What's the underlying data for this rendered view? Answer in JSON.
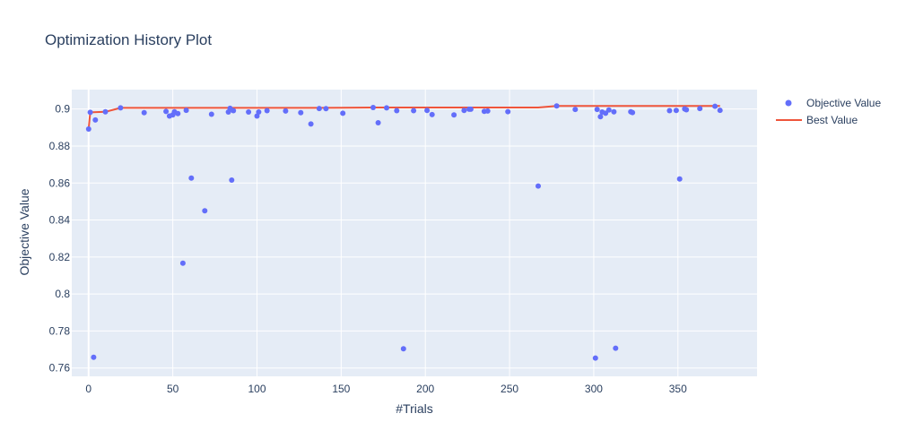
{
  "chart_data": {
    "type": "scatter",
    "title": "Optimization History Plot",
    "xlabel": "#Trials",
    "ylabel": "Objective Value",
    "xlim": [
      -10,
      397
    ],
    "ylim": [
      0.7555,
      0.9105
    ],
    "xticks": [
      0,
      50,
      100,
      150,
      200,
      250,
      300,
      350
    ],
    "yticks": [
      0.76,
      0.78,
      0.8,
      0.82,
      0.84,
      0.86,
      0.88,
      0.9
    ],
    "ytick_labels": [
      "0.76",
      "0.78",
      "0.8",
      "0.82",
      "0.84",
      "0.86",
      "0.88",
      "0.9"
    ],
    "grid": true,
    "legend_position": "top-right",
    "colors": {
      "objective": "#636efa",
      "best": "#ef553b",
      "plot_bg": "#e5ecf6",
      "text": "#2a3f5f"
    },
    "series": [
      {
        "name": "Objective Value",
        "mode": "markers",
        "points": [
          [
            0,
            0.8892
          ],
          [
            1,
            0.8982
          ],
          [
            3,
            0.7658
          ],
          [
            4,
            0.8941
          ],
          [
            10,
            0.8985
          ],
          [
            19,
            0.9006
          ],
          [
            33,
            0.898
          ],
          [
            46,
            0.8987
          ],
          [
            48,
            0.8962
          ],
          [
            50,
            0.8968
          ],
          [
            51,
            0.8985
          ],
          [
            53,
            0.8975
          ],
          [
            56,
            0.8167
          ],
          [
            58,
            0.8993
          ],
          [
            61,
            0.8627
          ],
          [
            69,
            0.845
          ],
          [
            73,
            0.8972
          ],
          [
            83,
            0.8984
          ],
          [
            84,
            0.9004
          ],
          [
            85,
            0.8616
          ],
          [
            86,
            0.8991
          ],
          [
            95,
            0.8984
          ],
          [
            100,
            0.8962
          ],
          [
            101,
            0.8984
          ],
          [
            106,
            0.8991
          ],
          [
            117,
            0.8989
          ],
          [
            126,
            0.898
          ],
          [
            132,
            0.8919
          ],
          [
            137,
            0.9003
          ],
          [
            141,
            0.9002
          ],
          [
            151,
            0.8977
          ],
          [
            169,
            0.9008
          ],
          [
            172,
            0.8926
          ],
          [
            177,
            0.9006
          ],
          [
            183,
            0.8991
          ],
          [
            187,
            0.7704
          ],
          [
            193,
            0.8991
          ],
          [
            201,
            0.8992
          ],
          [
            204,
            0.897
          ],
          [
            217,
            0.8968
          ],
          [
            223,
            0.8992
          ],
          [
            226,
            0.8999
          ],
          [
            227,
            0.8999
          ],
          [
            235,
            0.8988
          ],
          [
            237,
            0.8989
          ],
          [
            249,
            0.8986
          ],
          [
            267,
            0.8584
          ],
          [
            278,
            0.9017
          ],
          [
            289,
            0.8998
          ],
          [
            301,
            0.7654
          ],
          [
            302,
            0.8998
          ],
          [
            304,
            0.8958
          ],
          [
            305,
            0.8984
          ],
          [
            307,
            0.8977
          ],
          [
            309,
            0.8995
          ],
          [
            312,
            0.8985
          ],
          [
            313,
            0.7707
          ],
          [
            322,
            0.8985
          ],
          [
            323,
            0.8981
          ],
          [
            345,
            0.8991
          ],
          [
            349,
            0.8992
          ],
          [
            351,
            0.8622
          ],
          [
            354,
            0.9001
          ],
          [
            355,
            0.8996
          ],
          [
            363,
            0.9003
          ],
          [
            372,
            0.9015
          ],
          [
            375,
            0.8993
          ]
        ]
      },
      {
        "name": "Best Value",
        "mode": "lines",
        "points": [
          [
            0,
            0.8892
          ],
          [
            1,
            0.8982
          ],
          [
            10,
            0.8985
          ],
          [
            19,
            0.9006
          ],
          [
            137,
            0.9006
          ],
          [
            169,
            0.9008
          ],
          [
            267,
            0.9008
          ],
          [
            278,
            0.9017
          ],
          [
            375,
            0.9017
          ]
        ]
      }
    ]
  }
}
